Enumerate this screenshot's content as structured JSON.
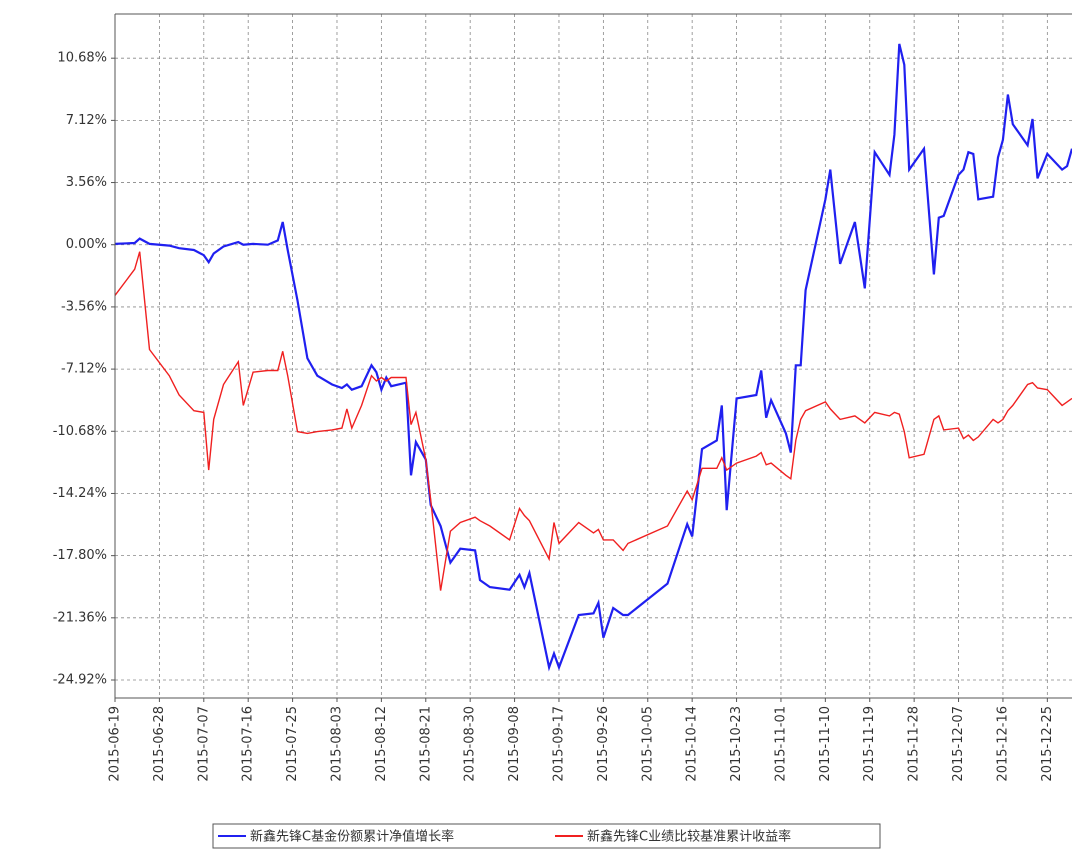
{
  "chart_data": {
    "type": "line",
    "x": [
      "2015-06-19",
      "2015-06-23",
      "2015-06-24",
      "2015-06-26",
      "2015-06-30",
      "2015-07-02",
      "2015-07-05",
      "2015-07-07",
      "2015-07-08",
      "2015-07-09",
      "2015-07-11",
      "2015-07-14",
      "2015-07-15",
      "2015-07-17",
      "2015-07-20",
      "2015-07-22",
      "2015-07-23",
      "2015-07-24",
      "2015-07-26",
      "2015-07-28",
      "2015-07-30",
      "2015-08-02",
      "2015-08-04",
      "2015-08-05",
      "2015-08-06",
      "2015-08-08",
      "2015-08-10",
      "2015-08-11",
      "2015-08-12",
      "2015-08-13",
      "2015-08-14",
      "2015-08-17",
      "2015-08-18",
      "2015-08-19",
      "2015-08-21",
      "2015-08-22",
      "2015-08-24",
      "2015-08-26",
      "2015-08-28",
      "2015-08-31",
      "2015-09-01",
      "2015-09-03",
      "2015-09-07",
      "2015-09-09",
      "2015-09-10",
      "2015-09-11",
      "2015-09-15",
      "2015-09-16",
      "2015-09-17",
      "2015-09-21",
      "2015-09-24",
      "2015-09-25",
      "2015-09-26",
      "2015-09-28",
      "2015-09-30",
      "2015-10-01",
      "2015-10-09",
      "2015-10-13",
      "2015-10-14",
      "2015-10-16",
      "2015-10-19",
      "2015-10-20",
      "2015-10-21",
      "2015-10-23",
      "2015-10-27",
      "2015-10-28",
      "2015-10-29",
      "2015-10-30",
      "2015-11-02",
      "2015-11-03",
      "2015-11-04",
      "2015-11-05",
      "2015-11-06",
      "2015-11-10",
      "2015-11-11",
      "2015-11-13",
      "2015-11-16",
      "2015-11-18",
      "2015-11-20",
      "2015-11-23",
      "2015-11-24",
      "2015-11-25",
      "2015-11-26",
      "2015-11-27",
      "2015-11-30",
      "2015-12-02",
      "2015-12-03",
      "2015-12-04",
      "2015-12-07",
      "2015-12-08",
      "2015-12-09",
      "2015-12-10",
      "2015-12-11",
      "2015-12-14",
      "2015-12-15",
      "2015-12-16",
      "2015-12-17",
      "2015-12-18",
      "2015-12-21",
      "2015-12-22",
      "2015-12-23",
      "2015-12-25",
      "2015-12-28",
      "2015-12-29",
      "2015-12-30"
    ],
    "series": [
      {
        "name": "新鑫先锋C基金份额累计净值增长率",
        "color": "#2020f0",
        "values": [
          0.05,
          0.1,
          0.35,
          0.05,
          -0.05,
          -0.2,
          -0.3,
          -0.6,
          -1.0,
          -0.5,
          -0.1,
          0.15,
          0,
          0.05,
          0,
          0.25,
          1.3,
          -0.3,
          -3.2,
          -6.5,
          -7.5,
          -8.0,
          -8.2,
          -8.0,
          -8.3,
          -8.1,
          -6.9,
          -7.3,
          -8.3,
          -7.6,
          -8.1,
          -7.9,
          -13.2,
          -11.3,
          -12.3,
          -14.9,
          -16.1,
          -18.2,
          -17.4,
          -17.5,
          -19.2,
          -19.6,
          -19.75,
          -18.9,
          -19.6,
          -18.8,
          -24.2,
          -23.4,
          -24.2,
          -21.2,
          -21.1,
          -20.5,
          -22.5,
          -20.8,
          -21.2,
          -21.2,
          -19.4,
          -16.0,
          -16.7,
          -11.7,
          -11.2,
          -9.2,
          -15.2,
          -8.8,
          -8.6,
          -7.2,
          -9.9,
          -8.9,
          -10.8,
          -11.9,
          -6.9,
          -6.9,
          -2.6,
          2.6,
          4.3,
          -1.1,
          1.3,
          -2.5,
          5.3,
          4.0,
          6.3,
          11.5,
          10.3,
          4.3,
          5.5,
          -1.7,
          1.55,
          1.65,
          4.0,
          4.3,
          5.3,
          5.2,
          2.6,
          2.75,
          5.0,
          6.0,
          8.6,
          6.9,
          5.7,
          7.2,
          3.8,
          5.2,
          4.3,
          4.5,
          5.5
        ]
      },
      {
        "name": "新鑫先锋C业绩比较基准累计收益率",
        "color": "#f02020",
        "values": [
          -2.9,
          -1.4,
          -0.4,
          -6.0,
          -7.5,
          -8.6,
          -9.5,
          -9.6,
          -12.9,
          -10.0,
          -8.0,
          -6.7,
          -9.2,
          -7.3,
          -7.2,
          -7.2,
          -6.1,
          -7.5,
          -10.7,
          -10.8,
          -10.7,
          -10.6,
          -10.5,
          -9.4,
          -10.5,
          -9.2,
          -7.5,
          -7.8,
          -7.6,
          -7.8,
          -7.6,
          -7.6,
          -10.3,
          -9.6,
          -12.3,
          -14.6,
          -19.8,
          -16.4,
          -15.9,
          -15.6,
          -15.8,
          -16.1,
          -16.9,
          -15.1,
          -15.5,
          -15.8,
          -18.0,
          -15.9,
          -17.1,
          -15.9,
          -16.5,
          -16.3,
          -16.9,
          -16.9,
          -17.5,
          -17.1,
          -16.1,
          -14.1,
          -14.6,
          -12.8,
          -12.8,
          -12.2,
          -12.9,
          -12.5,
          -12.1,
          -11.9,
          -12.6,
          -12.5,
          -13.2,
          -13.4,
          -11.2,
          -10.0,
          -9.5,
          -9.0,
          -9.4,
          -10.0,
          -9.8,
          -10.2,
          -9.6,
          -9.8,
          -9.6,
          -9.7,
          -10.7,
          -12.2,
          -12.0,
          -10.0,
          -9.8,
          -10.6,
          -10.5,
          -11.1,
          -10.9,
          -11.2,
          -11.0,
          -10.0,
          -10.2,
          -10.0,
          -9.5,
          -9.2,
          -8.0,
          -7.9,
          -8.2,
          -8.3,
          -9.2,
          -9.0,
          -8.8
        ]
      }
    ],
    "xlim": [
      "2015-06-19",
      "2015-12-30"
    ],
    "xticks": [
      "2015-06-19",
      "2015-06-28",
      "2015-07-07",
      "2015-07-16",
      "2015-07-25",
      "2015-08-03",
      "2015-08-12",
      "2015-08-21",
      "2015-08-30",
      "2015-09-08",
      "2015-09-17",
      "2015-09-26",
      "2015-10-05",
      "2015-10-14",
      "2015-10-23",
      "2015-11-01",
      "2015-11-10",
      "2015-11-19",
      "2015-11-28",
      "2015-12-07",
      "2015-12-16",
      "2015-12-25"
    ],
    "ylim": [
      -25.95,
      13.21
    ],
    "yticks": [
      {
        "value": 10.68,
        "label": "10.68%"
      },
      {
        "value": 7.12,
        "label": "7.12%"
      },
      {
        "value": 3.56,
        "label": "3.56%"
      },
      {
        "value": 0,
        "label": "0.00%"
      },
      {
        "value": -3.56,
        "label": "-3.56%"
      },
      {
        "value": -7.12,
        "label": "-7.12%"
      },
      {
        "value": -10.68,
        "label": "-10.68%"
      },
      {
        "value": -14.24,
        "label": "-14.24%"
      },
      {
        "value": -17.8,
        "label": "-17.80%"
      },
      {
        "value": -21.36,
        "label": "-21.36%"
      },
      {
        "value": -24.92,
        "label": "-24.92%"
      }
    ],
    "grid": true
  }
}
